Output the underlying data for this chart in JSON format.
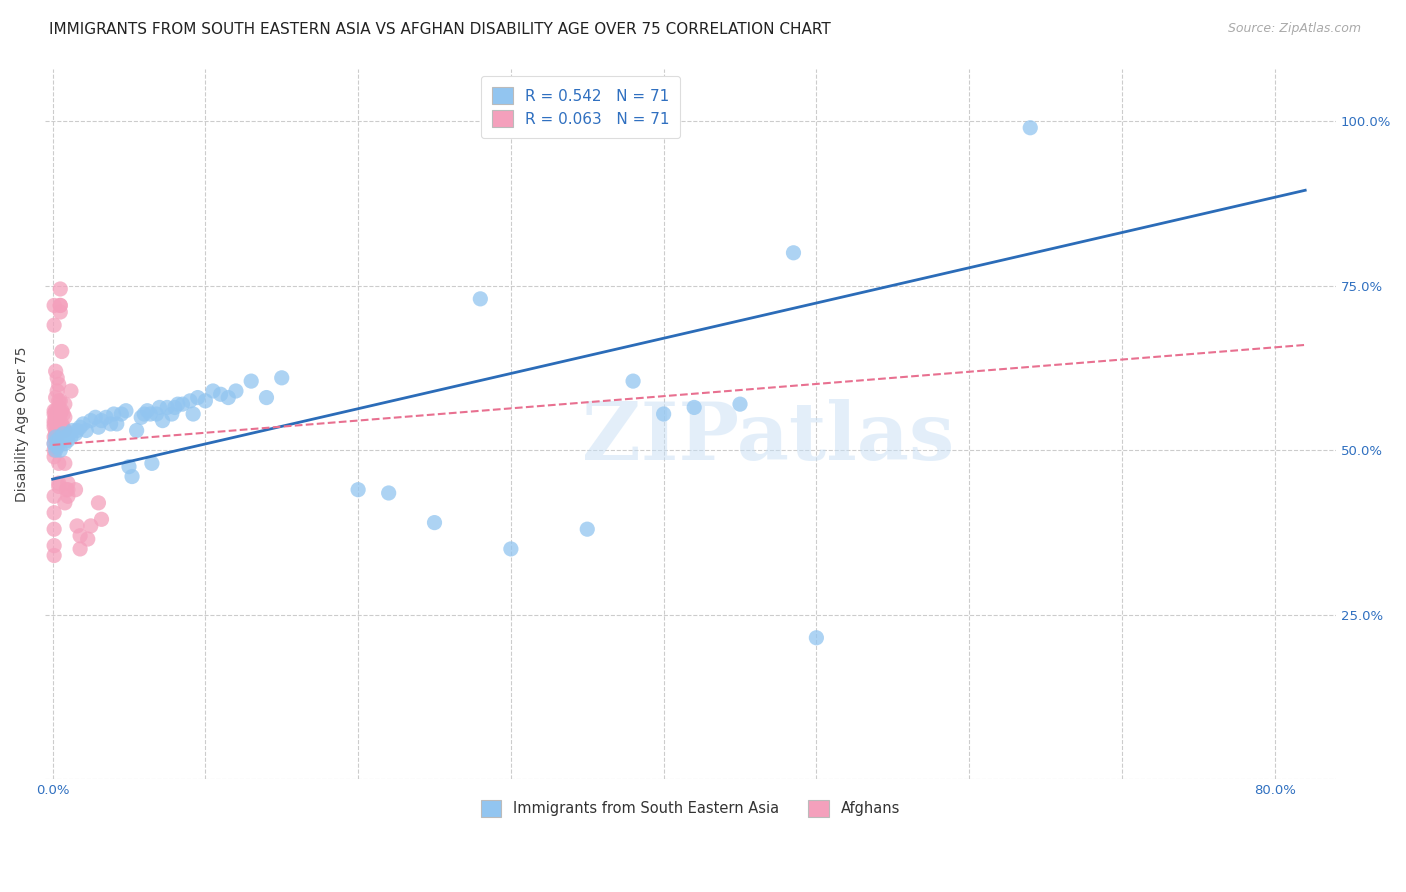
{
  "title": "IMMIGRANTS FROM SOUTH EASTERN ASIA VS AFGHAN DISABILITY AGE OVER 75 CORRELATION CHART",
  "source": "Source: ZipAtlas.com",
  "ylabel": "Disability Age Over 75",
  "xlim": [
    -0.005,
    0.84
  ],
  "ylim": [
    0.0,
    1.08
  ],
  "blue_color": "#92C5F0",
  "pink_color": "#F4A0BC",
  "blue_line_color": "#2B6CB8",
  "pink_line_color": "#E87090",
  "R_blue": 0.542,
  "R_pink": 0.063,
  "N": 71,
  "watermark": "ZIPatlas",
  "legend_label_blue": "Immigrants from South Eastern Asia",
  "legend_label_pink": "Afghans",
  "blue_scatter": [
    [
      0.001,
      0.51
    ],
    [
      0.002,
      0.5
    ],
    [
      0.002,
      0.52
    ],
    [
      0.003,
      0.505
    ],
    [
      0.003,
      0.515
    ],
    [
      0.004,
      0.51
    ],
    [
      0.005,
      0.52
    ],
    [
      0.005,
      0.5
    ],
    [
      0.006,
      0.515
    ],
    [
      0.007,
      0.525
    ],
    [
      0.008,
      0.51
    ],
    [
      0.009,
      0.52
    ],
    [
      0.01,
      0.515
    ],
    [
      0.011,
      0.525
    ],
    [
      0.012,
      0.52
    ],
    [
      0.013,
      0.53
    ],
    [
      0.015,
      0.525
    ],
    [
      0.016,
      0.53
    ],
    [
      0.018,
      0.535
    ],
    [
      0.02,
      0.54
    ],
    [
      0.022,
      0.53
    ],
    [
      0.025,
      0.545
    ],
    [
      0.028,
      0.55
    ],
    [
      0.03,
      0.535
    ],
    [
      0.032,
      0.545
    ],
    [
      0.035,
      0.55
    ],
    [
      0.038,
      0.54
    ],
    [
      0.04,
      0.555
    ],
    [
      0.042,
      0.54
    ],
    [
      0.045,
      0.555
    ],
    [
      0.048,
      0.56
    ],
    [
      0.05,
      0.475
    ],
    [
      0.052,
      0.46
    ],
    [
      0.055,
      0.53
    ],
    [
      0.058,
      0.55
    ],
    [
      0.06,
      0.555
    ],
    [
      0.062,
      0.56
    ],
    [
      0.064,
      0.555
    ],
    [
      0.065,
      0.48
    ],
    [
      0.068,
      0.555
    ],
    [
      0.07,
      0.565
    ],
    [
      0.072,
      0.545
    ],
    [
      0.075,
      0.565
    ],
    [
      0.078,
      0.555
    ],
    [
      0.08,
      0.565
    ],
    [
      0.082,
      0.57
    ],
    [
      0.085,
      0.57
    ],
    [
      0.09,
      0.575
    ],
    [
      0.092,
      0.555
    ],
    [
      0.095,
      0.58
    ],
    [
      0.1,
      0.575
    ],
    [
      0.105,
      0.59
    ],
    [
      0.11,
      0.585
    ],
    [
      0.115,
      0.58
    ],
    [
      0.12,
      0.59
    ],
    [
      0.13,
      0.605
    ],
    [
      0.14,
      0.58
    ],
    [
      0.15,
      0.61
    ],
    [
      0.2,
      0.44
    ],
    [
      0.22,
      0.435
    ],
    [
      0.25,
      0.39
    ],
    [
      0.3,
      0.35
    ],
    [
      0.35,
      0.38
    ],
    [
      0.38,
      0.605
    ],
    [
      0.4,
      0.555
    ],
    [
      0.42,
      0.565
    ],
    [
      0.45,
      0.57
    ],
    [
      0.28,
      0.73
    ],
    [
      0.5,
      0.215
    ],
    [
      0.485,
      0.8
    ],
    [
      0.64,
      0.99
    ]
  ],
  "pink_scatter": [
    [
      0.001,
      0.51
    ],
    [
      0.001,
      0.535
    ],
    [
      0.001,
      0.5
    ],
    [
      0.001,
      0.52
    ],
    [
      0.001,
      0.555
    ],
    [
      0.001,
      0.545
    ],
    [
      0.001,
      0.49
    ],
    [
      0.001,
      0.54
    ],
    [
      0.001,
      0.56
    ],
    [
      0.002,
      0.525
    ],
    [
      0.002,
      0.515
    ],
    [
      0.002,
      0.545
    ],
    [
      0.002,
      0.55
    ],
    [
      0.002,
      0.505
    ],
    [
      0.002,
      0.53
    ],
    [
      0.002,
      0.55
    ],
    [
      0.002,
      0.56
    ],
    [
      0.003,
      0.555
    ],
    [
      0.003,
      0.515
    ],
    [
      0.003,
      0.53
    ],
    [
      0.003,
      0.53
    ],
    [
      0.003,
      0.51
    ],
    [
      0.003,
      0.55
    ],
    [
      0.003,
      0.525
    ],
    [
      0.004,
      0.565
    ],
    [
      0.004,
      0.48
    ],
    [
      0.004,
      0.445
    ],
    [
      0.004,
      0.45
    ],
    [
      0.005,
      0.72
    ],
    [
      0.005,
      0.745
    ],
    [
      0.005,
      0.71
    ],
    [
      0.005,
      0.72
    ],
    [
      0.006,
      0.65
    ],
    [
      0.008,
      0.57
    ],
    [
      0.008,
      0.48
    ],
    [
      0.009,
      0.44
    ],
    [
      0.01,
      0.45
    ],
    [
      0.01,
      0.44
    ],
    [
      0.012,
      0.59
    ],
    [
      0.015,
      0.44
    ],
    [
      0.016,
      0.385
    ],
    [
      0.018,
      0.37
    ],
    [
      0.018,
      0.35
    ],
    [
      0.023,
      0.365
    ],
    [
      0.025,
      0.385
    ],
    [
      0.03,
      0.42
    ],
    [
      0.032,
      0.395
    ],
    [
      0.008,
      0.42
    ],
    [
      0.01,
      0.43
    ],
    [
      0.001,
      0.72
    ],
    [
      0.001,
      0.69
    ],
    [
      0.002,
      0.62
    ],
    [
      0.002,
      0.58
    ],
    [
      0.003,
      0.61
    ],
    [
      0.003,
      0.59
    ],
    [
      0.004,
      0.6
    ],
    [
      0.004,
      0.575
    ],
    [
      0.005,
      0.575
    ],
    [
      0.005,
      0.555
    ],
    [
      0.006,
      0.56
    ],
    [
      0.006,
      0.54
    ],
    [
      0.007,
      0.555
    ],
    [
      0.007,
      0.535
    ],
    [
      0.008,
      0.55
    ],
    [
      0.008,
      0.53
    ],
    [
      0.001,
      0.43
    ],
    [
      0.001,
      0.405
    ],
    [
      0.001,
      0.38
    ],
    [
      0.001,
      0.355
    ],
    [
      0.001,
      0.34
    ]
  ],
  "blue_trendline": [
    [
      0.0,
      0.456
    ],
    [
      0.82,
      0.895
    ]
  ],
  "pink_trendline": [
    [
      0.0,
      0.508
    ],
    [
      0.82,
      0.66
    ]
  ],
  "title_fontsize": 11,
  "axis_label_fontsize": 10,
  "tick_fontsize": 9.5,
  "source_fontsize": 9
}
